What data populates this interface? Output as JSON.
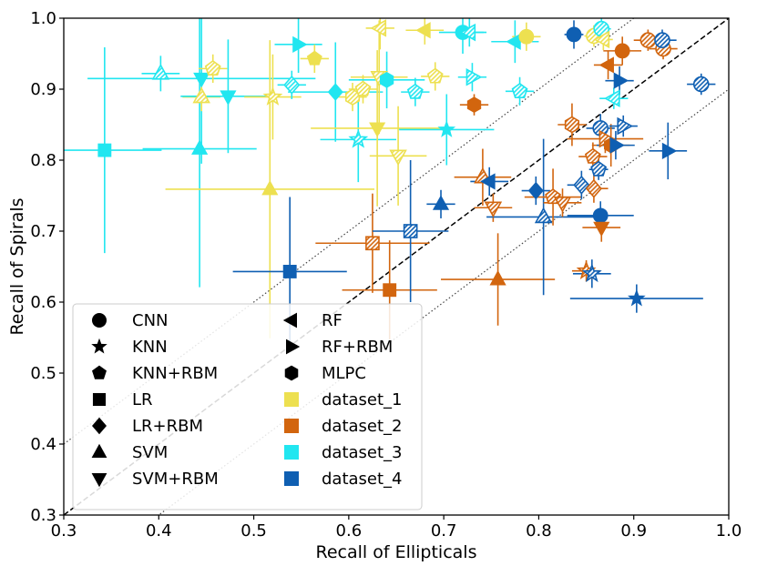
{
  "chart_data": {
    "type": "scatter",
    "title": "",
    "xlabel": "Recall of Ellipticals",
    "ylabel": "Recall of Spirals",
    "xlim": [
      0.3,
      1.0
    ],
    "ylim": [
      0.3,
      1.0
    ],
    "xticks": [
      "0.3",
      "0.4",
      "0.5",
      "0.6",
      "0.7",
      "0.8",
      "0.9",
      "1.0"
    ],
    "yticks": [
      "0.3",
      "0.4",
      "0.5",
      "0.6",
      "0.7",
      "0.8",
      "0.9",
      "1.0"
    ],
    "grid": false,
    "reference_lines": [
      {
        "name": "y = x",
        "style": "dashed",
        "offset": 0.0
      },
      {
        "name": "y = x + 0.1",
        "style": "dotted",
        "offset": 0.1
      },
      {
        "name": "y = x - 0.1",
        "style": "dotted",
        "offset": -0.1
      }
    ],
    "legend_position": "lower-left",
    "legend_methods": [
      {
        "name": "CNN",
        "marker": "circle"
      },
      {
        "name": "KNN",
        "marker": "star"
      },
      {
        "name": "KNN+RBM",
        "marker": "pentagon"
      },
      {
        "name": "LR",
        "marker": "square"
      },
      {
        "name": "LR+RBM",
        "marker": "diamond"
      },
      {
        "name": "SVM",
        "marker": "triangle-up"
      },
      {
        "name": "SVM+RBM",
        "marker": "triangle-down"
      },
      {
        "name": "RF",
        "marker": "triangle-left"
      },
      {
        "name": "RF+RBM",
        "marker": "triangle-right"
      },
      {
        "name": "MLPC",
        "marker": "hexagon"
      }
    ],
    "datasets": [
      {
        "name": "dataset_1",
        "color": "#ede050"
      },
      {
        "name": "dataset_2",
        "color": "#d2650e"
      },
      {
        "name": "dataset_3",
        "color": "#21e6f0"
      },
      {
        "name": "dataset_4",
        "color": "#0f5fb2"
      }
    ],
    "points": [
      {
        "method": "LR",
        "dataset": "dataset_3",
        "x": 0.343,
        "y": 0.814,
        "xerr": 0.06,
        "yerr": 0.145,
        "hatch": false
      },
      {
        "method": "SVM",
        "dataset": "dataset_3",
        "x": 0.402,
        "y": 0.922,
        "xerr": 0.02,
        "yerr": 0.025,
        "hatch": true
      },
      {
        "method": "SVM",
        "dataset": "dataset_3",
        "x": 0.443,
        "y": 0.816,
        "xerr": 0.06,
        "yerr": 0.195,
        "hatch": false
      },
      {
        "method": "SVM+RBM",
        "dataset": "dataset_3",
        "x": 0.445,
        "y": 0.915,
        "xerr": 0.12,
        "yerr": 0.12,
        "hatch": false
      },
      {
        "method": "SVM",
        "dataset": "dataset_1",
        "x": 0.445,
        "y": 0.889,
        "xerr": 0.02,
        "yerr": 0.02,
        "hatch": true
      },
      {
        "method": "KNN+RBM",
        "dataset": "dataset_1",
        "x": 0.457,
        "y": 0.929,
        "xerr": 0.015,
        "yerr": 0.02,
        "hatch": true
      },
      {
        "method": "SVM+RBM",
        "dataset": "dataset_3",
        "x": 0.473,
        "y": 0.89,
        "xerr": 0.05,
        "yerr": 0.08,
        "hatch": false
      },
      {
        "method": "SVM",
        "dataset": "dataset_1",
        "x": 0.517,
        "y": 0.759,
        "xerr": 0.11,
        "yerr": 0.21,
        "hatch": false
      },
      {
        "method": "KNN",
        "dataset": "dataset_1",
        "x": 0.52,
        "y": 0.889,
        "xerr": 0.03,
        "yerr": 0.06,
        "hatch": true
      },
      {
        "method": "LR+RBM",
        "dataset": "dataset_3",
        "x": 0.54,
        "y": 0.906,
        "xerr": 0.015,
        "yerr": 0.02,
        "hatch": true
      },
      {
        "method": "LR",
        "dataset": "dataset_4",
        "x": 0.538,
        "y": 0.643,
        "xerr": 0.06,
        "yerr": 0.105,
        "hatch": false
      },
      {
        "method": "RF+RBM",
        "dataset": "dataset_3",
        "x": 0.547,
        "y": 0.963,
        "xerr": 0.025,
        "yerr": 0.04,
        "hatch": false
      },
      {
        "method": "KNN+RBM",
        "dataset": "dataset_1",
        "x": 0.564,
        "y": 0.943,
        "xerr": 0.015,
        "yerr": 0.02,
        "hatch": false
      },
      {
        "method": "LR+RBM",
        "dataset": "dataset_3",
        "x": 0.586,
        "y": 0.896,
        "xerr": 0.05,
        "yerr": 0.07,
        "hatch": false
      },
      {
        "method": "KNN",
        "dataset": "dataset_3",
        "x": 0.61,
        "y": 0.829,
        "xerr": 0.04,
        "yerr": 0.06,
        "hatch": true
      },
      {
        "method": "MLPC",
        "dataset": "dataset_1",
        "x": 0.604,
        "y": 0.889,
        "xerr": 0.015,
        "yerr": 0.02,
        "hatch": true
      },
      {
        "method": "KNN+RBM",
        "dataset": "dataset_1",
        "x": 0.615,
        "y": 0.9,
        "xerr": 0.015,
        "yerr": 0.02,
        "hatch": true
      },
      {
        "method": "SVM+RBM",
        "dataset": "dataset_1",
        "x": 0.63,
        "y": 0.845,
        "xerr": 0.07,
        "yerr": 0.11,
        "hatch": false
      },
      {
        "method": "SVM+RBM",
        "dataset": "dataset_1",
        "x": 0.632,
        "y": 0.917,
        "xerr": 0.03,
        "yerr": 0.08,
        "hatch": true
      },
      {
        "method": "RF",
        "dataset": "dataset_1",
        "x": 0.633,
        "y": 0.986,
        "xerr": 0.015,
        "yerr": 0.03,
        "hatch": true
      },
      {
        "method": "MLPC",
        "dataset": "dataset_3",
        "x": 0.64,
        "y": 0.913,
        "xerr": 0.04,
        "yerr": 0.04,
        "hatch": false
      },
      {
        "method": "LR",
        "dataset": "dataset_2",
        "x": 0.625,
        "y": 0.683,
        "xerr": 0.06,
        "yerr": 0.07,
        "hatch": true
      },
      {
        "method": "LR",
        "dataset": "dataset_2",
        "x": 0.643,
        "y": 0.617,
        "xerr": 0.05,
        "yerr": 0.07,
        "hatch": false
      },
      {
        "method": "SVM+RBM",
        "dataset": "dataset_1",
        "x": 0.652,
        "y": 0.806,
        "xerr": 0.03,
        "yerr": 0.07,
        "hatch": true
      },
      {
        "method": "KNN+RBM",
        "dataset": "dataset_3",
        "x": 0.67,
        "y": 0.896,
        "xerr": 0.015,
        "yerr": 0.02,
        "hatch": true
      },
      {
        "method": "LR",
        "dataset": "dataset_4",
        "x": 0.665,
        "y": 0.7,
        "xerr": 0.04,
        "yerr": 0.1,
        "hatch": true
      },
      {
        "method": "RF",
        "dataset": "dataset_1",
        "x": 0.68,
        "y": 0.983,
        "xerr": 0.02,
        "yerr": 0.02,
        "hatch": false
      },
      {
        "method": "KNN+RBM",
        "dataset": "dataset_1",
        "x": 0.691,
        "y": 0.918,
        "xerr": 0.015,
        "yerr": 0.02,
        "hatch": true
      },
      {
        "method": "KNN",
        "dataset": "dataset_3",
        "x": 0.703,
        "y": 0.843,
        "xerr": 0.05,
        "yerr": 0.05,
        "hatch": false
      },
      {
        "method": "SVM",
        "dataset": "dataset_4",
        "x": 0.697,
        "y": 0.738,
        "xerr": 0.015,
        "yerr": 0.02,
        "hatch": false
      },
      {
        "method": "CNN",
        "dataset": "dataset_3",
        "x": 0.72,
        "y": 0.98,
        "xerr": 0.025,
        "yerr": 0.03,
        "hatch": false
      },
      {
        "method": "RF",
        "dataset": "dataset_3",
        "x": 0.727,
        "y": 0.98,
        "xerr": 0.015,
        "yerr": 0.02,
        "hatch": true
      },
      {
        "method": "RF+RBM",
        "dataset": "dataset_3",
        "x": 0.73,
        "y": 0.917,
        "xerr": 0.015,
        "yerr": 0.02,
        "hatch": true
      },
      {
        "method": "MLPC",
        "dataset": "dataset_2",
        "x": 0.732,
        "y": 0.878,
        "xerr": 0.015,
        "yerr": 0.015,
        "hatch": false
      },
      {
        "method": "SVM",
        "dataset": "dataset_2",
        "x": 0.741,
        "y": 0.776,
        "xerr": 0.03,
        "yerr": 0.04,
        "hatch": true
      },
      {
        "method": "RF",
        "dataset": "dataset_4",
        "x": 0.748,
        "y": 0.77,
        "xerr": 0.02,
        "yerr": 0.02,
        "hatch": false
      },
      {
        "method": "SVM+RBM",
        "dataset": "dataset_2",
        "x": 0.752,
        "y": 0.733,
        "xerr": 0.02,
        "yerr": 0.02,
        "hatch": true
      },
      {
        "method": "SVM",
        "dataset": "dataset_2",
        "x": 0.757,
        "y": 0.632,
        "xerr": 0.06,
        "yerr": 0.065,
        "hatch": false
      },
      {
        "method": "RF",
        "dataset": "dataset_3",
        "x": 0.775,
        "y": 0.967,
        "xerr": 0.025,
        "yerr": 0.03,
        "hatch": false
      },
      {
        "method": "KNN+RBM",
        "dataset": "dataset_3",
        "x": 0.78,
        "y": 0.897,
        "xerr": 0.015,
        "yerr": 0.02,
        "hatch": true
      },
      {
        "method": "CNN",
        "dataset": "dataset_1",
        "x": 0.787,
        "y": 0.974,
        "xerr": 0.015,
        "yerr": 0.02,
        "hatch": false
      },
      {
        "method": "LR+RBM",
        "dataset": "dataset_4",
        "x": 0.797,
        "y": 0.757,
        "xerr": 0.015,
        "yerr": 0.02,
        "hatch": false
      },
      {
        "method": "SVM",
        "dataset": "dataset_4",
        "x": 0.805,
        "y": 0.72,
        "xerr": 0.06,
        "yerr": 0.11,
        "hatch": true
      },
      {
        "method": "KNN+RBM",
        "dataset": "dataset_2",
        "x": 0.815,
        "y": 0.748,
        "xerr": 0.03,
        "yerr": 0.04,
        "hatch": true
      },
      {
        "method": "SVM+RBM",
        "dataset": "dataset_2",
        "x": 0.825,
        "y": 0.74,
        "xerr": 0.02,
        "yerr": 0.02,
        "hatch": true
      },
      {
        "method": "MLPC",
        "dataset": "dataset_2",
        "x": 0.835,
        "y": 0.85,
        "xerr": 0.015,
        "yerr": 0.03,
        "hatch": true
      },
      {
        "method": "CNN",
        "dataset": "dataset_4",
        "x": 0.837,
        "y": 0.977,
        "xerr": 0.01,
        "yerr": 0.02,
        "hatch": false
      },
      {
        "method": "LR+RBM",
        "dataset": "dataset_4",
        "x": 0.845,
        "y": 0.765,
        "xerr": 0.015,
        "yerr": 0.02,
        "hatch": true
      },
      {
        "method": "KNN",
        "dataset": "dataset_2",
        "x": 0.85,
        "y": 0.644,
        "xerr": 0.015,
        "yerr": 0.015,
        "hatch": true
      },
      {
        "method": "KNN",
        "dataset": "dataset_4",
        "x": 0.856,
        "y": 0.64,
        "xerr": 0.02,
        "yerr": 0.02,
        "hatch": true
      },
      {
        "method": "CNN",
        "dataset": "dataset_1",
        "x": 0.858,
        "y": 0.975,
        "xerr": 0.01,
        "yerr": 0.015,
        "hatch": true
      },
      {
        "method": "KNN+RBM",
        "dataset": "dataset_2",
        "x": 0.857,
        "y": 0.805,
        "xerr": 0.015,
        "yerr": 0.02,
        "hatch": true
      },
      {
        "method": "LR+RBM",
        "dataset": "dataset_2",
        "x": 0.858,
        "y": 0.76,
        "xerr": 0.015,
        "yerr": 0.02,
        "hatch": true
      },
      {
        "method": "KNN+RBM",
        "dataset": "dataset_4",
        "x": 0.863,
        "y": 0.787,
        "xerr": 0.01,
        "yerr": 0.015,
        "hatch": true
      },
      {
        "method": "CNN",
        "dataset": "dataset_4",
        "x": 0.865,
        "y": 0.722,
        "xerr": 0.035,
        "yerr": 0.02,
        "hatch": false
      },
      {
        "method": "SVM+RBM",
        "dataset": "dataset_2",
        "x": 0.866,
        "y": 0.705,
        "xerr": 0.02,
        "yerr": 0.02,
        "hatch": false
      },
      {
        "method": "CNN",
        "dataset": "dataset_4",
        "x": 0.865,
        "y": 0.845,
        "xerr": 0.015,
        "yerr": 0.02,
        "hatch": true
      },
      {
        "method": "CNN",
        "dataset": "dataset_3",
        "x": 0.866,
        "y": 0.985,
        "xerr": 0.01,
        "yerr": 0.015,
        "hatch": true
      },
      {
        "method": "RF",
        "dataset": "dataset_1",
        "x": 0.868,
        "y": 0.97,
        "xerr": 0.01,
        "yerr": 0.015,
        "hatch": true
      },
      {
        "method": "RF+RBM",
        "dataset": "dataset_2",
        "x": 0.87,
        "y": 0.83,
        "xerr": 0.04,
        "yerr": 0.02,
        "hatch": true
      },
      {
        "method": "RF",
        "dataset": "dataset_2",
        "x": 0.873,
        "y": 0.934,
        "xerr": 0.015,
        "yerr": 0.02,
        "hatch": false
      },
      {
        "method": "MLPC",
        "dataset": "dataset_2",
        "x": 0.876,
        "y": 0.821,
        "xerr": 0.02,
        "yerr": 0.03,
        "hatch": false
      },
      {
        "method": "RF+RBM",
        "dataset": "dataset_4",
        "x": 0.881,
        "y": 0.821,
        "xerr": 0.02,
        "yerr": 0.02,
        "hatch": false
      },
      {
        "method": "RF",
        "dataset": "dataset_3",
        "x": 0.879,
        "y": 0.887,
        "xerr": 0.015,
        "yerr": 0.015,
        "hatch": true
      },
      {
        "method": "CNN",
        "dataset": "dataset_2",
        "x": 0.888,
        "y": 0.954,
        "xerr": 0.02,
        "yerr": 0.02,
        "hatch": false
      },
      {
        "method": "RF+RBM",
        "dataset": "dataset_4",
        "x": 0.889,
        "y": 0.848,
        "xerr": 0.015,
        "yerr": 0.015,
        "hatch": true
      },
      {
        "method": "RF+RBM",
        "dataset": "dataset_4",
        "x": 0.885,
        "y": 0.912,
        "xerr": 0.015,
        "yerr": 0.02,
        "hatch": false
      },
      {
        "method": "KNN",
        "dataset": "dataset_4",
        "x": 0.903,
        "y": 0.605,
        "xerr": 0.07,
        "yerr": 0.02,
        "hatch": false
      },
      {
        "method": "CNN",
        "dataset": "dataset_2",
        "x": 0.915,
        "y": 0.969,
        "xerr": 0.015,
        "yerr": 0.015,
        "hatch": true
      },
      {
        "method": "CNN",
        "dataset": "dataset_2",
        "x": 0.931,
        "y": 0.957,
        "xerr": 0.015,
        "yerr": 0.015,
        "hatch": true
      },
      {
        "method": "CNN",
        "dataset": "dataset_4",
        "x": 0.93,
        "y": 0.969,
        "xerr": 0.015,
        "yerr": 0.015,
        "hatch": true
      },
      {
        "method": "RF+RBM",
        "dataset": "dataset_4",
        "x": 0.936,
        "y": 0.813,
        "xerr": 0.02,
        "yerr": 0.04,
        "hatch": false
      },
      {
        "method": "CNN",
        "dataset": "dataset_4",
        "x": 0.971,
        "y": 0.907,
        "xerr": 0.015,
        "yerr": 0.015,
        "hatch": true
      }
    ]
  }
}
